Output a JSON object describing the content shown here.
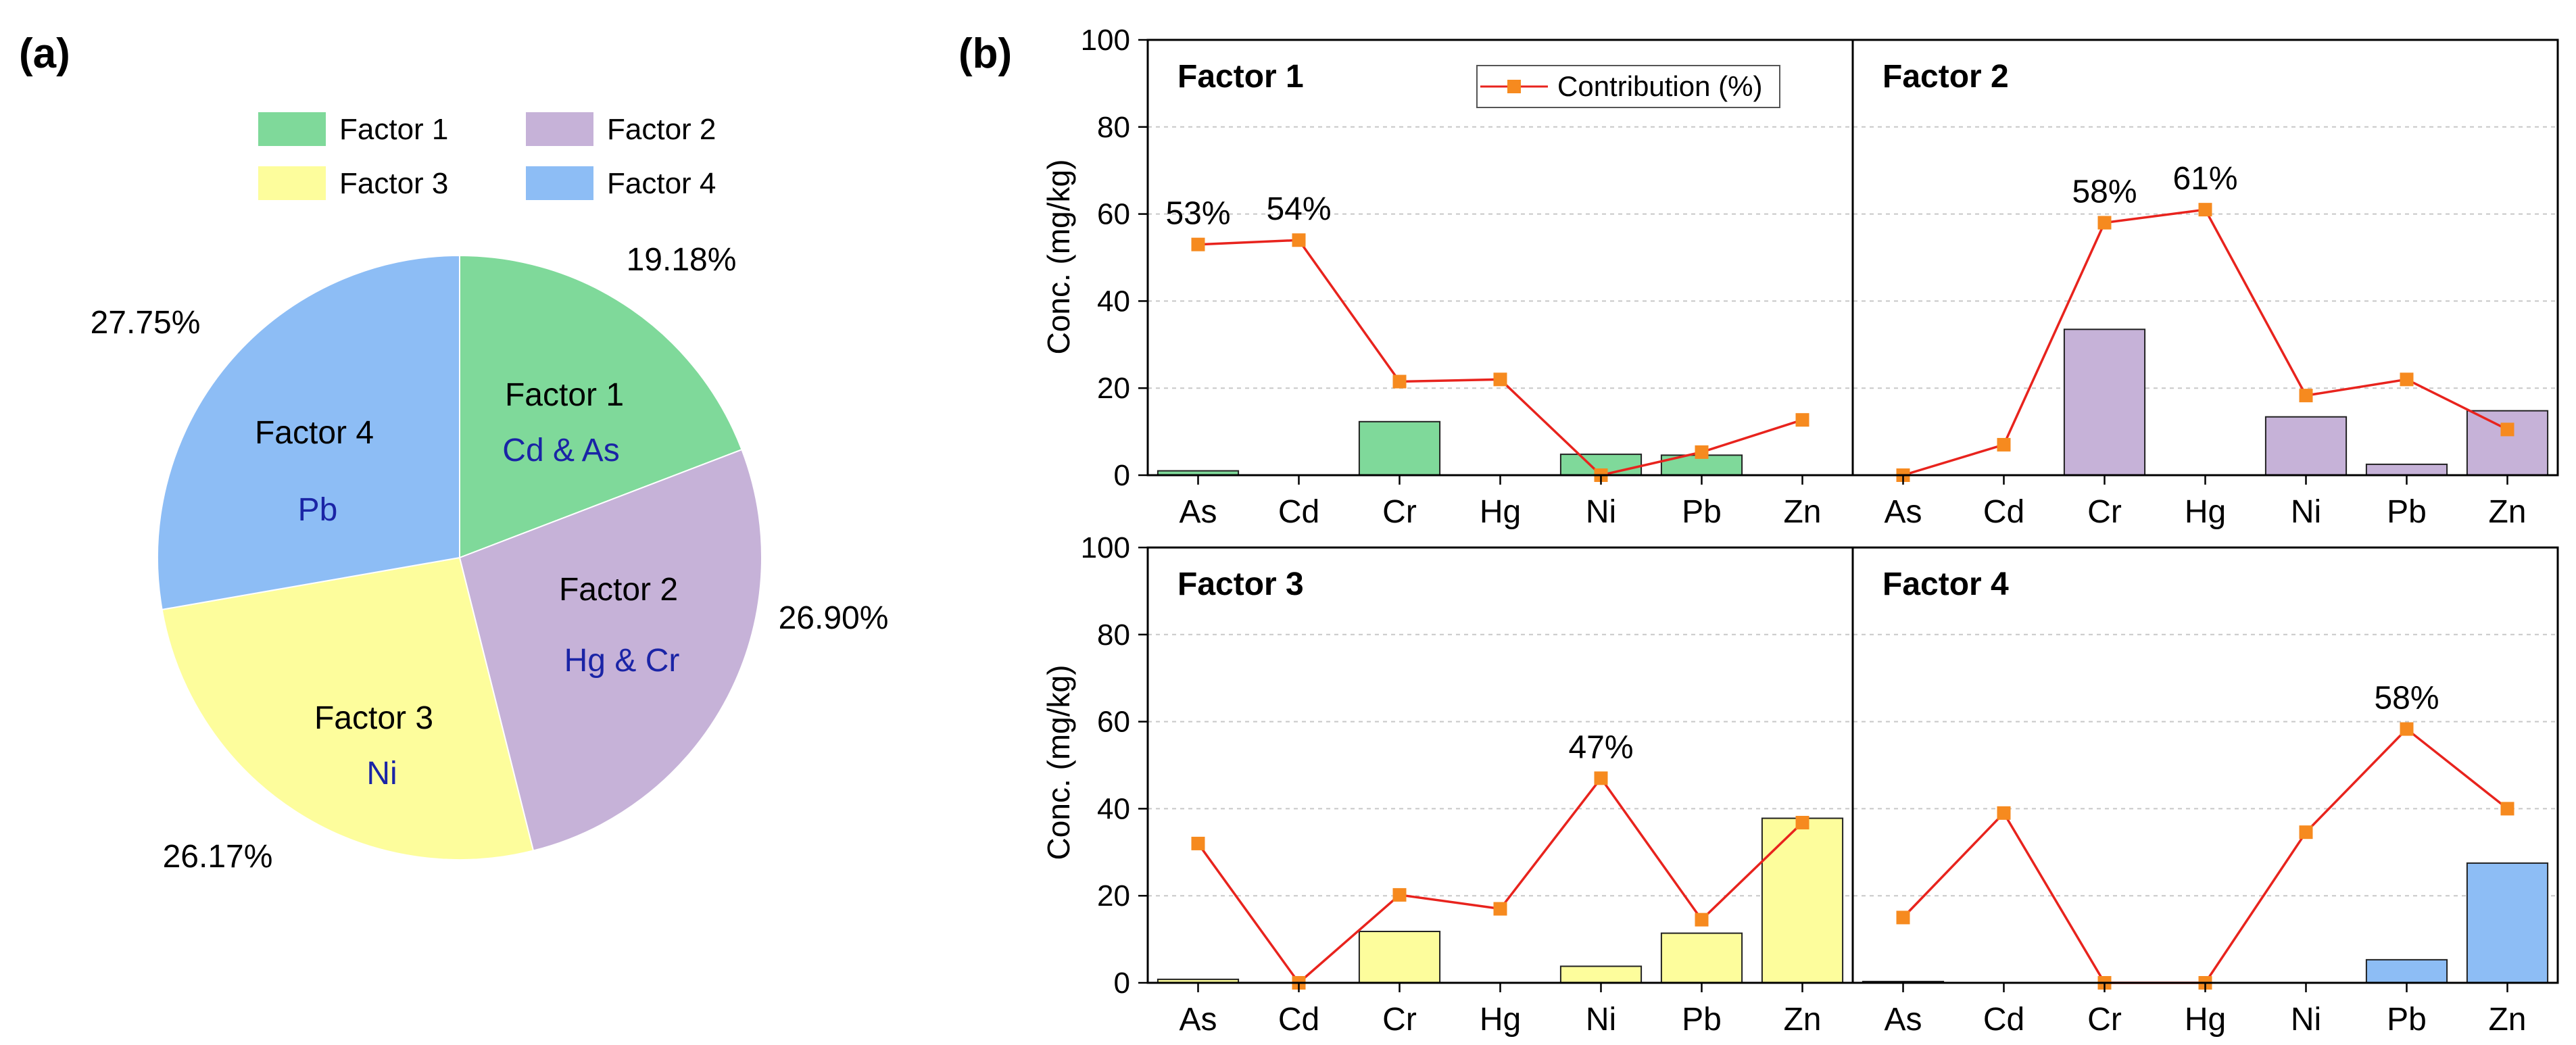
{
  "panel_labels": {
    "a": "(a)",
    "b": "(b)"
  },
  "colors": {
    "factor1": "#7fd99a",
    "factor2": "#c6b2d8",
    "factor3": "#fdfd9c",
    "factor4": "#8dbdf5",
    "line": "#e8231d",
    "marker": "#f68a1f",
    "source_text": "#1a24a6"
  },
  "chart_data": [
    {
      "type": "pie",
      "title": "",
      "legend": {
        "placement": "top",
        "entries": [
          "Factor 1",
          "Factor 2",
          "Factor 3",
          "Factor 4"
        ]
      },
      "slices": [
        {
          "name": "Factor 1",
          "value": 19.18,
          "label": "19.18%",
          "source": "Cd & As"
        },
        {
          "name": "Factor 2",
          "value": 26.9,
          "label": "26.90%",
          "source": "Hg & Cr"
        },
        {
          "name": "Factor 3",
          "value": 26.17,
          "label": "26.17%",
          "source": "Ni"
        },
        {
          "name": "Factor 4",
          "value": 27.75,
          "label": "27.75%",
          "source": "Pb"
        }
      ]
    },
    {
      "type": "bar",
      "title": "",
      "categories": [
        "As",
        "Cd",
        "Cr",
        "Hg",
        "Ni",
        "Pb",
        "Zn"
      ],
      "ylabel": "Conc. (mg/kg)",
      "ylim": [
        0,
        100
      ],
      "yticks": [
        "0",
        "20",
        "40",
        "60",
        "80",
        "100"
      ],
      "grid": true,
      "legend": {
        "placement": "top",
        "entry": "Contribution (%)"
      },
      "panels": [
        {
          "name": "Factor 1",
          "conc": [
            1.0,
            0,
            12.3,
            0,
            4.8,
            4.6,
            0
          ],
          "contribution": [
            53,
            54,
            21.5,
            22,
            0,
            5.3,
            12.7
          ],
          "annotations": [
            {
              "index": 0,
              "label": "53%"
            },
            {
              "index": 1,
              "label": "54%"
            }
          ]
        },
        {
          "name": "Factor 2",
          "conc": [
            0,
            0,
            33.5,
            0,
            13.4,
            2.5,
            14.8
          ],
          "contribution": [
            0,
            7,
            58,
            61,
            18.3,
            22,
            10.5
          ],
          "annotations": [
            {
              "index": 2,
              "label": "58%"
            },
            {
              "index": 3,
              "label": "61%"
            }
          ]
        },
        {
          "name": "Factor 3",
          "conc": [
            0.8,
            0,
            11.8,
            0,
            3.8,
            11.4,
            37.8
          ],
          "contribution": [
            32,
            0,
            20.2,
            17,
            47,
            14.5,
            36.8
          ],
          "annotations": [
            {
              "index": 4,
              "label": "47%"
            }
          ]
        },
        {
          "name": "Factor 4",
          "conc": [
            0.3,
            0,
            0,
            0,
            0,
            5.3,
            27.5
          ],
          "contribution": [
            15,
            39,
            0,
            0,
            34.6,
            58.3,
            40
          ],
          "annotations": [
            {
              "index": 5,
              "label": "58%"
            }
          ]
        }
      ]
    }
  ]
}
